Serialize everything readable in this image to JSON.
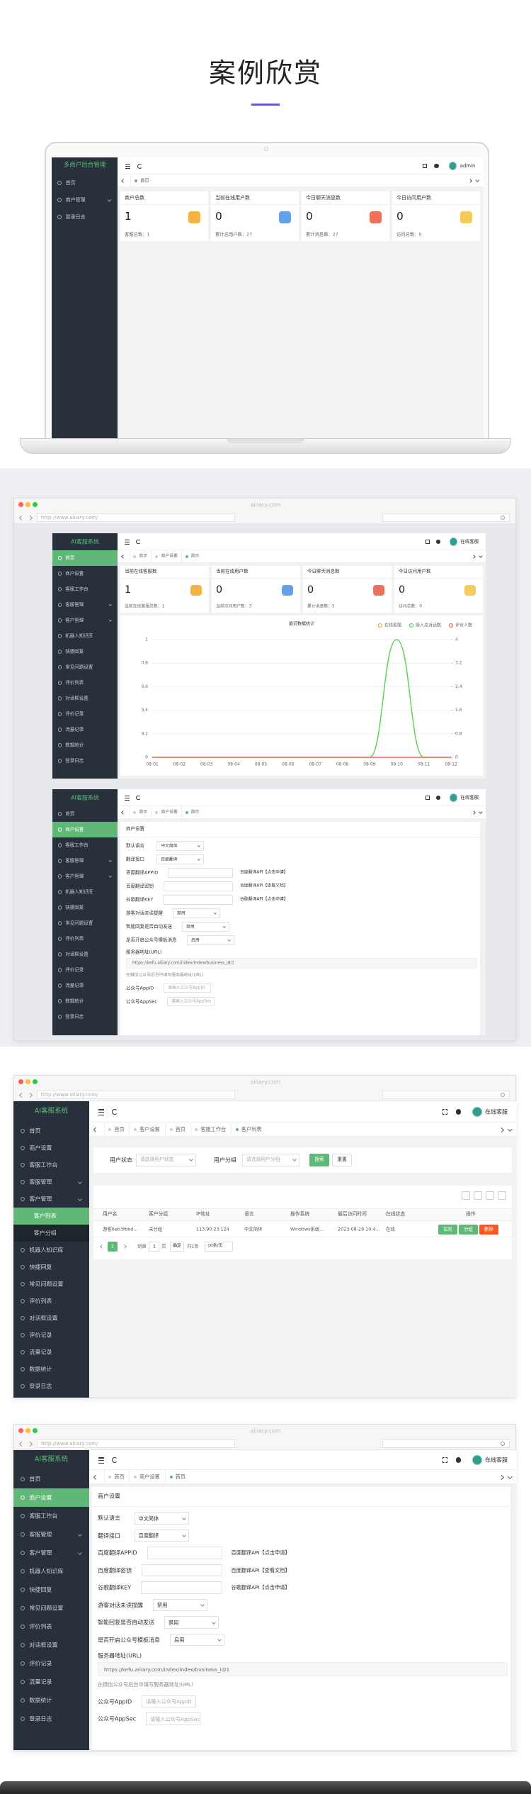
{
  "header": {
    "title": "案例欣赏"
  },
  "laptop": {
    "brand": "多商户后台管理",
    "menu": [
      "首页",
      "商户管理",
      "登录日志"
    ],
    "user": "admin",
    "tabs": [
      "首页"
    ],
    "cards": [
      {
        "title": "商户总数",
        "value": 1,
        "note": "客服总数：1"
      },
      {
        "title": "当前在线用户数",
        "value": 0,
        "note": "累计总用户数：27"
      },
      {
        "title": "今日聊天消息数",
        "value": 0,
        "note": "累计消息数：27"
      },
      {
        "title": "今日访问用户数",
        "value": 0,
        "note": "访问总数：0"
      }
    ]
  },
  "app": {
    "domain": "aiiiary.com",
    "url": "http://www.aiiiary.com/",
    "brand": "AI客服系统",
    "menu": [
      "首页",
      "商户设置",
      "客服工作台",
      "客服管理",
      "客户管理",
      "机器人知识库",
      "快捷回复",
      "常见问题设置",
      "评价列表",
      "对话框设置",
      "评价记录",
      "流量记录",
      "数据统计",
      "登录日志"
    ],
    "submenu": [
      "客户列表",
      "客户分组"
    ],
    "user": "在线客服"
  },
  "dashboard": {
    "tabs": [
      "首页",
      "商户设置",
      "首页"
    ],
    "cards": [
      {
        "title": "当前在线客服数",
        "value": 1,
        "note": "当前在线客服总数：1"
      },
      {
        "title": "当前在线用户数",
        "value": 0,
        "note": "当前访问用户数：3"
      },
      {
        "title": "今日聊天消息数",
        "value": 0,
        "note": "累计消息数：5"
      },
      {
        "title": "今日访问用户数",
        "value": 0,
        "note": "访问总数：0"
      }
    ],
    "chart": {
      "type": "line",
      "title": "最近数据统计",
      "categories": [
        "08-01",
        "08-02",
        "08-03",
        "08-04",
        "08-05",
        "08-06",
        "08-07",
        "08-08",
        "08-09",
        "08-10",
        "08-11",
        "08-12"
      ],
      "series": [
        {
          "name": "在线客服",
          "color": "#f0ad4e",
          "values": [
            0,
            0,
            0,
            0,
            0,
            0,
            0,
            0,
            0,
            0,
            0,
            0
          ]
        },
        {
          "name": "接入总对话数",
          "color": "#5ed35e",
          "axis": "y2",
          "values": [
            0,
            0,
            0,
            0,
            0,
            0,
            0,
            0,
            0,
            4,
            0,
            0
          ]
        },
        {
          "name": "评价人数",
          "color": "#ff6b6b",
          "values": [
            0,
            0,
            0,
            0,
            0,
            0,
            0,
            0,
            0,
            0,
            0,
            0
          ]
        }
      ],
      "ylim": [
        0,
        1
      ],
      "yticks": [
        0,
        0.2,
        0.4,
        0.6,
        0.8,
        1
      ],
      "y2lim": [
        0,
        4
      ],
      "y2ticks": [
        0,
        0.8,
        1.6,
        2.4,
        3.2,
        4
      ]
    }
  },
  "settings": {
    "tabs": [
      "首页",
      "商户设置",
      "首页"
    ],
    "section": "商户设置",
    "fields": [
      {
        "label": "默认语言",
        "type": "select",
        "value": "中文简体"
      },
      {
        "label": "翻译接口",
        "type": "select",
        "value": "百度翻译"
      },
      {
        "label": "百度翻译APPID",
        "type": "input",
        "link": "百度翻译API【点击申请】"
      },
      {
        "label": "百度翻译密钥",
        "type": "input",
        "link": "百度翻译API【查看文档】"
      },
      {
        "label": "谷歌翻译KEY",
        "type": "input",
        "link": "谷歌翻译API【点击申请】"
      },
      {
        "label": "游客对话未读提醒",
        "type": "select",
        "value": "禁用"
      },
      {
        "label": "智能回复是否自动发送",
        "type": "select",
        "value": "禁用"
      },
      {
        "label": "是否开启公众号模板消息",
        "type": "select",
        "value": "启用"
      },
      {
        "label": "服务器地址(URL)",
        "type": "url",
        "value": "https://kefu.aiiiary.com/index/index/business_id/1",
        "note": "在微信公众号后台中填写服务器地址(URL)"
      },
      {
        "label": "公众号AppID",
        "type": "input",
        "placeholder": "请输入公众号AppID"
      },
      {
        "label": "公众号AppSec",
        "type": "input",
        "placeholder": "请输入公众号AppSec"
      }
    ]
  },
  "customers": {
    "tabs": [
      "首页",
      "客户设置",
      "首页",
      "客服工作台",
      "客户列表"
    ],
    "filters": [
      {
        "label": "用户状态",
        "placeholder": "请选择用户状态"
      },
      {
        "label": "用户分组",
        "placeholder": "请选择用户分组"
      }
    ],
    "search": "搜索",
    "reset": "重置",
    "columns": [
      "用户名",
      "客户分组",
      "IP地址",
      "语言",
      "操作系统",
      "最后访问时间",
      "在线状态",
      "操作"
    ],
    "rows": [
      [
        "游客6eb3fbbd...",
        "未分组",
        "113.90.23.124",
        "中文简体",
        "Windows系统...",
        "2023-08-28 10:4...",
        "在线"
      ]
    ],
    "actions": [
      "拉黑",
      "分组",
      "删除"
    ],
    "pager": {
      "current": 1,
      "goto": "到第",
      "page_input": 1,
      "page_unit": "页",
      "confirm": "确定",
      "total": "共1条",
      "size": "10条/页"
    }
  }
}
